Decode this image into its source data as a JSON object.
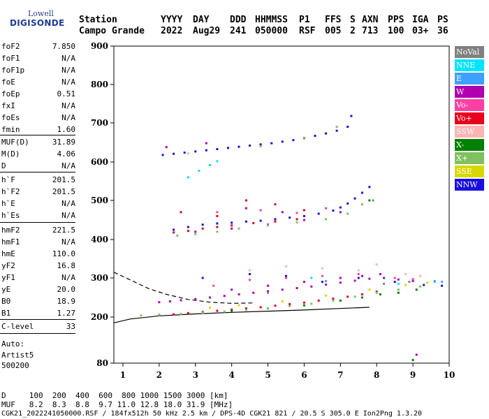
{
  "logo": {
    "line1": "Lowell",
    "line2": "DIGISONDE"
  },
  "header": {
    "labels": [
      "Station",
      "YYYY",
      "DAY",
      "DDD",
      "HHMMSS",
      "P1",
      "FFS",
      "S",
      "AXN",
      "PPS",
      "IGA",
      "PS"
    ],
    "values": [
      "Campo Grande",
      "2022",
      "Aug29",
      "241",
      "050000",
      "RSF",
      "005",
      "2",
      "713",
      "100",
      "03+",
      "36"
    ]
  },
  "params": {
    "group1": [
      {
        "k": "foF2",
        "v": "7.850"
      },
      {
        "k": "foF1",
        "v": "N/A"
      },
      {
        "k": "foF1p",
        "v": "N/A"
      },
      {
        "k": "foE",
        "v": "N/A"
      },
      {
        "k": "foEp",
        "v": "0.51"
      },
      {
        "k": "fxI",
        "v": "N/A"
      },
      {
        "k": "foEs",
        "v": "N/A"
      },
      {
        "k": "fmin",
        "v": "1.60"
      }
    ],
    "group2": [
      {
        "k": "MUF(D)",
        "v": "31.89"
      },
      {
        "k": "M(D)",
        "v": "4.06"
      },
      {
        "k": "D",
        "v": "N/A"
      }
    ],
    "group3": [
      {
        "k": "h`F",
        "v": "201.5"
      },
      {
        "k": "h`F2",
        "v": "201.5"
      },
      {
        "k": "h`E",
        "v": "N/A"
      },
      {
        "k": "h`Es",
        "v": "N/A"
      }
    ],
    "group4": [
      {
        "k": "hmF2",
        "v": "221.5"
      },
      {
        "k": "hmF1",
        "v": "N/A"
      },
      {
        "k": "hmE",
        "v": "110.0"
      },
      {
        "k": "yF2",
        "v": "16.8"
      },
      {
        "k": "yF1",
        "v": "N/A"
      },
      {
        "k": "yE",
        "v": "20.0"
      },
      {
        "k": "B0",
        "v": "18.9"
      },
      {
        "k": "B1",
        "v": "1.27"
      }
    ],
    "group5": [
      {
        "k": "C-level",
        "v": "33"
      }
    ],
    "auto": [
      "Auto:",
      "Artist5",
      "500200"
    ]
  },
  "legend": [
    {
      "label": "NoVal",
      "color": "#808080",
      "text": "#ffffff"
    },
    {
      "label": "NNE",
      "color": "#00e5ff",
      "text": "#ffffff"
    },
    {
      "label": "E",
      "color": "#3ea0ff",
      "text": "#ffffff"
    },
    {
      "label": "W",
      "color": "#b000b0",
      "text": "#ffffff"
    },
    {
      "label": "Vo-",
      "color": "#ff3fa5",
      "text": "#ffffff"
    },
    {
      "label": "Vo+",
      "color": "#e8001c",
      "text": "#ffffff"
    },
    {
      "label": "SSW",
      "color": "#ffb3b3",
      "text": "#ffffff"
    },
    {
      "label": "X-",
      "color": "#008000",
      "text": "#ffffff"
    },
    {
      "label": "X+",
      "color": "#80c060",
      "text": "#ffffff"
    },
    {
      "label": "SSE",
      "color": "#d8d800",
      "text": "#ffffff"
    },
    {
      "label": "NNW",
      "color": "#1a0fe0",
      "text": "#ffffff"
    }
  ],
  "footer": {
    "d_line": "D     100  200  400  600  800 1000 1500 3000 [km]",
    "muf_line": "MUF   8.2  8.3  8.8  9.7 11.0 12.8 18.0 31.9 [MHz]",
    "file_line": "CGK21_2022241050000.RSF / 184fx512h 50 kHz 2.5 km / DPS-4D CGK21 821 / 20.5 S 305.0 E Ion2Png 1.3.20"
  },
  "chart_data": {
    "type": "scatter",
    "xlim": [
      0.75,
      10
    ],
    "ylim": [
      80,
      900
    ],
    "x_ticks": [
      "1",
      "2",
      "3",
      "4",
      "5",
      "6",
      "7",
      "8",
      "9",
      "10"
    ],
    "y_ticks": [
      "80",
      "200",
      "300",
      "400",
      "500",
      "600",
      "700",
      "800",
      "900"
    ],
    "grid": false,
    "legend_position": "right",
    "series": [
      {
        "name": "NNW",
        "color": "#1a0fe0",
        "points": [
          [
            2.1,
            618
          ],
          [
            2.4,
            621
          ],
          [
            2.7,
            624
          ],
          [
            3.0,
            627
          ],
          [
            3.3,
            630
          ],
          [
            3.6,
            633
          ],
          [
            3.9,
            636
          ],
          [
            4.2,
            639
          ],
          [
            4.5,
            642
          ],
          [
            4.8,
            645
          ],
          [
            5.1,
            648
          ],
          [
            5.4,
            652
          ],
          [
            5.7,
            656
          ],
          [
            6.0,
            661
          ],
          [
            6.3,
            667
          ],
          [
            6.6,
            673
          ],
          [
            6.9,
            680
          ],
          [
            7.2,
            690
          ],
          [
            7.3,
            718
          ],
          [
            2.4,
            425
          ],
          [
            2.8,
            432
          ],
          [
            3.2,
            438
          ],
          [
            3.6,
            441
          ],
          [
            4.0,
            443
          ],
          [
            4.4,
            446
          ],
          [
            4.8,
            448
          ],
          [
            5.2,
            452
          ],
          [
            5.6,
            456
          ],
          [
            6.0,
            460
          ],
          [
            6.4,
            466
          ],
          [
            6.8,
            474
          ],
          [
            7.0,
            482
          ],
          [
            7.2,
            492
          ],
          [
            7.4,
            505
          ],
          [
            7.6,
            520
          ],
          [
            7.8,
            535
          ],
          [
            3.2,
            300
          ],
          [
            4.5,
            310
          ],
          [
            5.5,
            305
          ],
          [
            6.5,
            290
          ],
          [
            7.5,
            300
          ],
          [
            8.5,
            290
          ],
          [
            9.3,
            282
          ],
          [
            9.8,
            280
          ]
        ]
      },
      {
        "name": "NNE",
        "color": "#00e5ff",
        "points": [
          [
            2.8,
            560
          ],
          [
            3.1,
            577
          ],
          [
            3.4,
            592
          ],
          [
            3.6,
            602
          ],
          [
            6.2,
            300
          ],
          [
            8.6,
            285
          ],
          [
            9.6,
            290
          ]
        ]
      },
      {
        "name": "W",
        "color": "#b000b0",
        "points": [
          [
            2.0,
            238
          ],
          [
            2.3,
            240
          ],
          [
            2.6,
            243
          ],
          [
            3.0,
            246
          ],
          [
            3.4,
            250
          ],
          [
            3.8,
            254
          ],
          [
            4.2,
            258
          ],
          [
            4.6,
            262
          ],
          [
            5.0,
            266
          ],
          [
            5.4,
            270
          ],
          [
            5.8,
            274
          ],
          [
            6.2,
            278
          ],
          [
            6.6,
            283
          ],
          [
            7.0,
            288
          ],
          [
            7.4,
            293
          ],
          [
            7.8,
            298
          ],
          [
            8.2,
            300
          ],
          [
            8.6,
            296
          ],
          [
            9.0,
            292
          ],
          [
            4.0,
            270
          ],
          [
            5.0,
            280
          ],
          [
            6.0,
            290
          ],
          [
            7.0,
            300
          ],
          [
            7.6,
            305
          ],
          [
            8.1,
            310
          ],
          [
            3.0,
            420
          ],
          [
            4.0,
            428
          ],
          [
            5.0,
            438
          ],
          [
            6.0,
            450
          ],
          [
            7.0,
            470
          ],
          [
            4.4,
            480
          ],
          [
            5.4,
            470
          ],
          [
            2.2,
            638
          ],
          [
            3.3,
            648
          ],
          [
            9.1,
            102
          ]
        ]
      },
      {
        "name": "Vo+",
        "color": "#e8001c",
        "points": [
          [
            2.0,
            205
          ],
          [
            2.4,
            207
          ],
          [
            2.8,
            210
          ],
          [
            3.2,
            213
          ],
          [
            3.6,
            216
          ],
          [
            4.0,
            219
          ],
          [
            4.4,
            222
          ],
          [
            4.8,
            225
          ],
          [
            5.2,
            229
          ],
          [
            5.6,
            233
          ],
          [
            6.0,
            237
          ],
          [
            6.4,
            242
          ],
          [
            6.8,
            247
          ],
          [
            7.2,
            252
          ],
          [
            7.6,
            258
          ],
          [
            8.0,
            265
          ],
          [
            2.4,
            418
          ],
          [
            2.8,
            422
          ],
          [
            3.2,
            428
          ],
          [
            3.6,
            432
          ],
          [
            4.0,
            436
          ],
          [
            4.6,
            442
          ],
          [
            5.2,
            446
          ],
          [
            5.8,
            452
          ],
          [
            2.6,
            470
          ],
          [
            3.6,
            460
          ],
          [
            4.4,
            500
          ],
          [
            5.2,
            490
          ],
          [
            6.0,
            475
          ]
        ]
      },
      {
        "name": "Vo-",
        "color": "#ff3fa5",
        "points": [
          [
            3.5,
            280
          ],
          [
            4.5,
            295
          ],
          [
            5.5,
            300
          ],
          [
            6.5,
            305
          ],
          [
            7.5,
            310
          ],
          [
            8.5,
            300
          ],
          [
            9.0,
            297
          ],
          [
            3.6,
            470
          ],
          [
            4.8,
            475
          ],
          [
            5.8,
            468
          ],
          [
            6.6,
            480
          ]
        ]
      },
      {
        "name": "X-",
        "color": "#008000",
        "points": [
          [
            4.0,
            216
          ],
          [
            5.0,
            222
          ],
          [
            6.0,
            230
          ],
          [
            7.0,
            242
          ],
          [
            7.6,
            250
          ],
          [
            8.1,
            258
          ],
          [
            8.6,
            262
          ],
          [
            9.1,
            270
          ],
          [
            7.8,
            500
          ],
          [
            9.0,
            88
          ]
        ]
      },
      {
        "name": "X+",
        "color": "#80c060",
        "points": [
          [
            1.5,
            204
          ],
          [
            2.0,
            206
          ],
          [
            2.6,
            208
          ],
          [
            3.2,
            211
          ],
          [
            3.8,
            214
          ],
          [
            4.4,
            218
          ],
          [
            5.0,
            222
          ],
          [
            5.6,
            228
          ],
          [
            6.2,
            234
          ],
          [
            6.8,
            242
          ],
          [
            7.4,
            252
          ],
          [
            8.0,
            262
          ],
          [
            8.6,
            270
          ],
          [
            9.2,
            278
          ],
          [
            2.5,
            410
          ],
          [
            3.0,
            414
          ],
          [
            3.6,
            420
          ],
          [
            4.2,
            428
          ],
          [
            5.0,
            436
          ],
          [
            5.8,
            444
          ],
          [
            6.6,
            452
          ],
          [
            7.2,
            466
          ],
          [
            7.6,
            490
          ],
          [
            4.8,
            640
          ],
          [
            6.0,
            660
          ],
          [
            6.9,
            690
          ]
        ]
      },
      {
        "name": "SSE",
        "color": "#d8d800",
        "points": [
          [
            3.4,
            224
          ],
          [
            4.2,
            230
          ],
          [
            5.4,
            240
          ],
          [
            6.6,
            255
          ],
          [
            7.8,
            270
          ],
          [
            8.8,
            282
          ],
          [
            9.4,
            288
          ]
        ]
      },
      {
        "name": "SSW",
        "color": "#ffb3b3",
        "points": [
          [
            4.5,
            320
          ],
          [
            5.5,
            330
          ],
          [
            6.5,
            325
          ],
          [
            7.5,
            320
          ],
          [
            8.0,
            335
          ],
          [
            8.8,
            310
          ],
          [
            9.2,
            305
          ],
          [
            2.8,
            622
          ]
        ]
      },
      {
        "name": "E",
        "color": "#3ea0ff",
        "points": [
          [
            9.6,
            292
          ],
          [
            9.8,
            290
          ],
          [
            6.6,
            292
          ]
        ]
      },
      {
        "name": "NoVal",
        "color": "#808080",
        "points": [
          [
            8.2,
            285
          ],
          [
            8.9,
            290
          ],
          [
            7.9,
            500
          ],
          [
            5.0,
            262
          ]
        ]
      }
    ],
    "curves": [
      {
        "style": "dashed",
        "points": [
          [
            0.75,
            315
          ],
          [
            1.2,
            295
          ],
          [
            1.7,
            273
          ],
          [
            2.2,
            258
          ],
          [
            2.8,
            245
          ],
          [
            3.4,
            238
          ],
          [
            4.0,
            235
          ],
          [
            4.6,
            236
          ]
        ]
      },
      {
        "style": "solid",
        "points": [
          [
            0.75,
            185
          ],
          [
            1.2,
            195
          ],
          [
            2.0,
            203
          ],
          [
            3.0,
            208
          ],
          [
            4.0,
            212
          ],
          [
            5.0,
            215
          ],
          [
            6.0,
            218
          ],
          [
            7.0,
            222
          ],
          [
            7.8,
            225
          ]
        ]
      }
    ]
  }
}
